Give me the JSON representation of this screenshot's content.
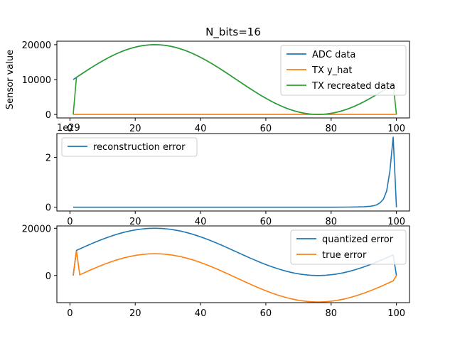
{
  "figure_title": "N_bits=16",
  "chart_data": [
    {
      "type": "line",
      "ylabel": "Sensor value",
      "xlim": [
        -4,
        104
      ],
      "ylim": [
        -1000,
        21000
      ],
      "xticks": [
        0,
        20,
        40,
        60,
        80,
        100
      ],
      "yticks": [
        0,
        10000,
        20000
      ],
      "grid": false,
      "legend_position": "top-right",
      "series": [
        {
          "name": "ADC data",
          "color": "#1f77b4",
          "kind": "sine",
          "x_start": 1,
          "x_end": 99
        },
        {
          "name": "TX y_hat",
          "color": "#ff7f0e",
          "kind": "zero",
          "x_start": 1,
          "x_end": 100
        },
        {
          "name": "TX recreated data",
          "color": "#2ca02c",
          "kind": "recreated",
          "x_start": 1,
          "x_end": 100
        }
      ]
    },
    {
      "type": "line",
      "offset_label": "1e29",
      "xlim": [
        -4,
        104
      ],
      "ylim": [
        -0.15,
        2.95
      ],
      "xticks": [
        0,
        20,
        40,
        60,
        80,
        100
      ],
      "yticks": [
        0,
        2
      ],
      "grid": false,
      "legend_position": "top-left",
      "series": [
        {
          "name": "reconstruction error",
          "color": "#1f77b4",
          "x": [
            1,
            10,
            20,
            30,
            40,
            50,
            60,
            70,
            80,
            85,
            88,
            90,
            92,
            93,
            94,
            95,
            96,
            97,
            98,
            99,
            100
          ],
          "y": [
            0,
            0,
            0,
            0,
            0,
            0,
            0,
            0,
            0.002,
            0.006,
            0.012,
            0.02,
            0.04,
            0.06,
            0.1,
            0.18,
            0.32,
            0.65,
            1.45,
            2.82,
            0
          ]
        }
      ]
    },
    {
      "type": "line",
      "xlim": [
        -4,
        104
      ],
      "ylim": [
        -11500,
        21000
      ],
      "xticks": [
        0,
        20,
        40,
        60,
        80,
        100
      ],
      "yticks": [
        0,
        20000
      ],
      "grid": false,
      "legend_position": "top-right",
      "series": [
        {
          "name": "quantized error",
          "color": "#1f77b4",
          "kind": "quantized",
          "x_start": 1,
          "x_end": 100
        },
        {
          "name": "true error",
          "color": "#ff7f0e",
          "kind": "trueerr",
          "x_start": 1,
          "x_end": 100
        }
      ]
    }
  ]
}
